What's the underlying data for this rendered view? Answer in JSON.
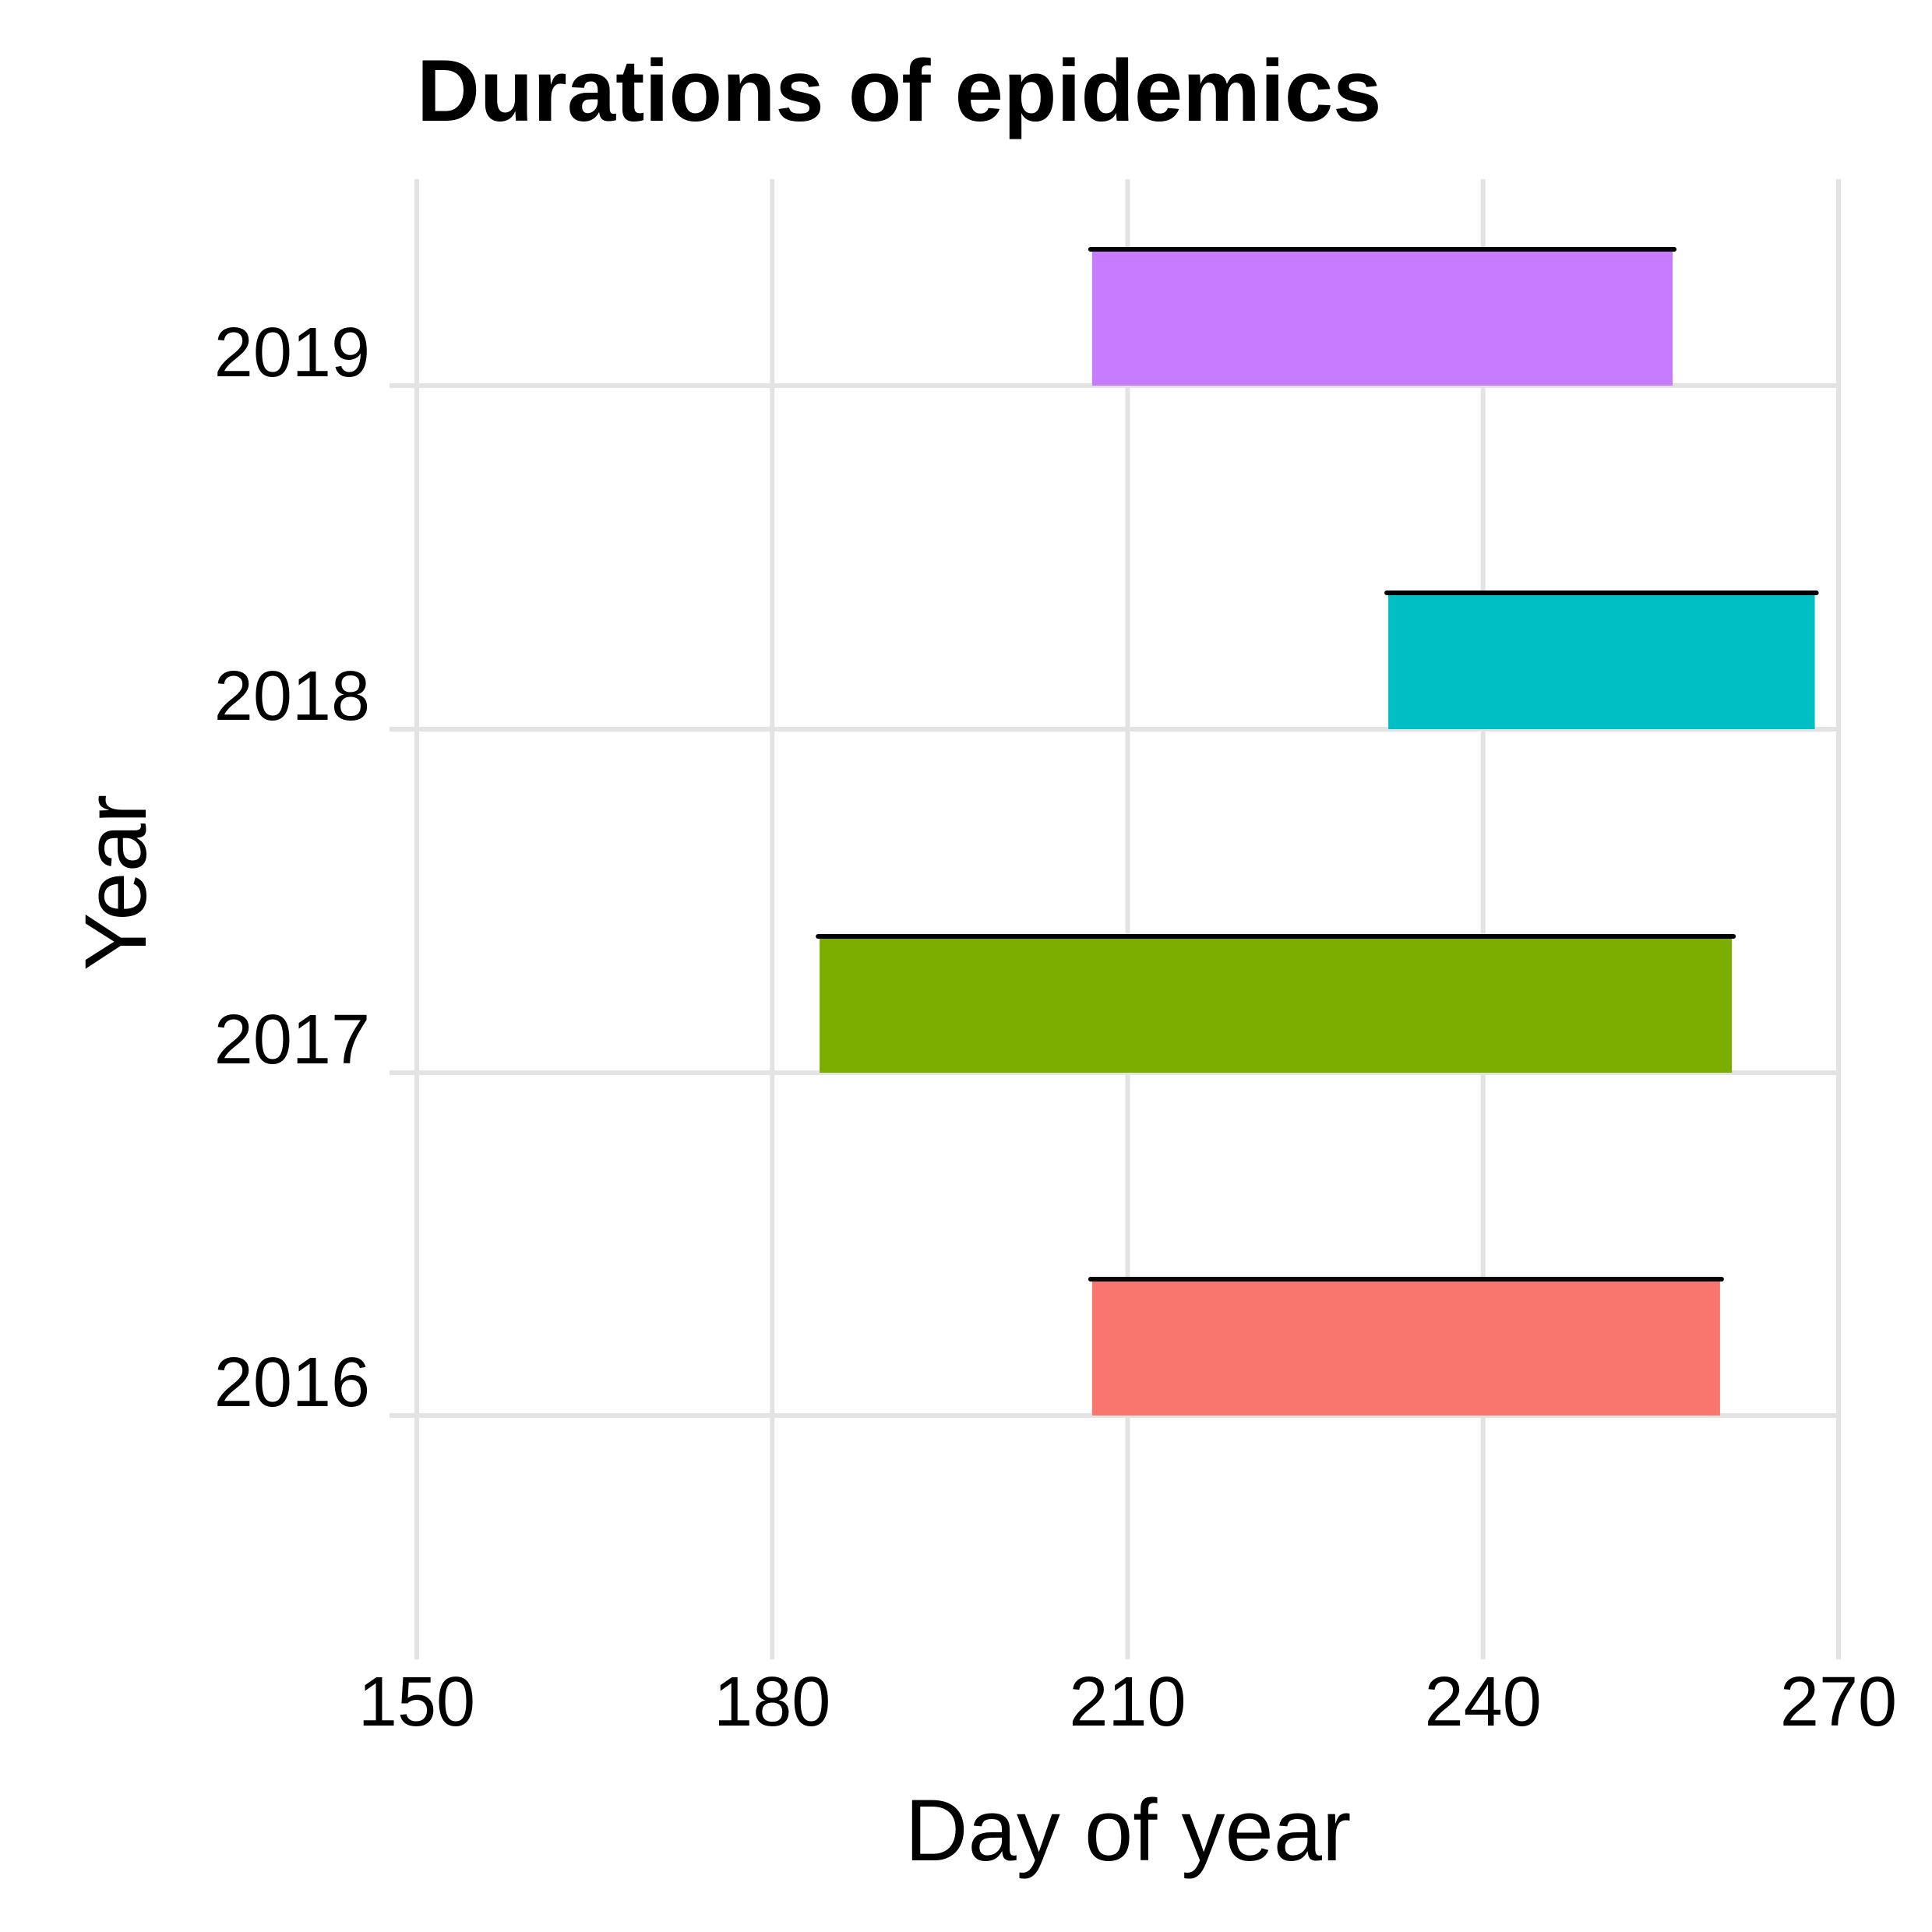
{
  "chart_data": {
    "type": "bar",
    "orientation": "horizontal-range",
    "title": "Durations of epidemics",
    "xlabel": "Day of year",
    "ylabel": "Year",
    "xlim": [
      150,
      270
    ],
    "x_ticks": [
      150,
      180,
      210,
      240,
      270
    ],
    "categories": [
      "2016",
      "2017",
      "2018",
      "2019"
    ],
    "ranges": [
      {
        "category": "2016",
        "start": 207,
        "end": 260,
        "color": "#F8766D"
      },
      {
        "category": "2017",
        "start": 184,
        "end": 261,
        "color": "#7CAE00"
      },
      {
        "category": "2018",
        "start": 232,
        "end": 268,
        "color": "#00BFC4"
      },
      {
        "category": "2019",
        "start": 207,
        "end": 256,
        "color": "#C77CFF"
      }
    ],
    "grid": true,
    "legend": "none"
  }
}
